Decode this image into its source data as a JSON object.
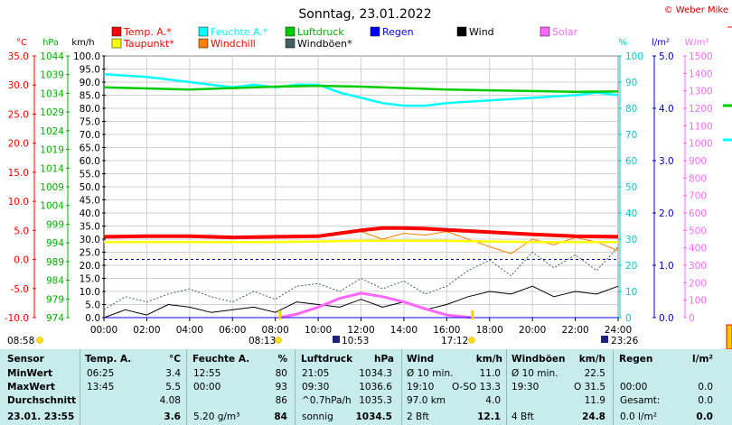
{
  "title": "Sonntag, 23.01.2022",
  "credit": "© Weber Mike",
  "axes": {
    "temp": {
      "unit": "°C",
      "ticks": [
        "35.0",
        "30.0",
        "25.0",
        "20.0",
        "15.0",
        "10.0",
        "5.0",
        "0.0",
        "-5.0",
        "-10.0"
      ],
      "color": "#ff0000"
    },
    "hpa": {
      "unit": "hPa",
      "ticks": [
        "1044",
        "1039",
        "1034",
        "1029",
        "1024",
        "1019",
        "1014",
        "1009",
        "1004",
        "999",
        "994",
        "989",
        "984",
        "979",
        "974"
      ],
      "color": "#00b000"
    },
    "kmh": {
      "unit": "km/h",
      "ticks": [
        "100.0",
        "95.0",
        "90.0",
        "85.0",
        "80.0",
        "75.0",
        "70.0",
        "65.0",
        "60.0",
        "55.0",
        "50.0",
        "45.0",
        "40.0",
        "35.0",
        "30.0",
        "25.0",
        "20.0",
        "15.0",
        "10.0",
        "5.0",
        "0.0"
      ],
      "color": "#000000"
    },
    "pct": {
      "unit": "%",
      "ticks": [
        "100",
        "90",
        "80",
        "70",
        "60",
        "50",
        "40",
        "30",
        "20",
        "10",
        "0"
      ],
      "color": "#00c8c8"
    },
    "lm2": {
      "unit": "l/m²",
      "ticks": [
        "5.0",
        "4.0",
        "3.0",
        "2.0",
        "1.0",
        "0.0"
      ],
      "color": "#0000cc"
    },
    "wm2": {
      "unit": "W/m²",
      "ticks": [
        "1500",
        "1400",
        "1300",
        "1200",
        "1100",
        "1000",
        "900",
        "800",
        "700",
        "600",
        "500",
        "400",
        "300",
        "200",
        "100",
        "0"
      ],
      "color": "#ff66ff"
    }
  },
  "legend": [
    {
      "label": "Temp. A.*",
      "color": "#ff0000"
    },
    {
      "label": "Feuchte A.*",
      "color": "#00ffff"
    },
    {
      "label": "Luftdruck",
      "color": "#00cc00"
    },
    {
      "label": "Regen",
      "color": "#0000ff"
    },
    {
      "label": "Wind",
      "color": "#000000"
    },
    {
      "label": "Solar",
      "color": "#ff66ff"
    },
    {
      "label": "Taupunkt*",
      "color": "#ffff00"
    },
    {
      "label": "Windchill",
      "color": "#ff8000"
    },
    {
      "label": "Windböen*",
      "color": "#406060"
    }
  ],
  "time_ticks": [
    "00:00",
    "02:00",
    "04:00",
    "06:00",
    "08:00",
    "10:00",
    "12:00",
    "14:00",
    "16:00",
    "18:00",
    "20:00",
    "22:00",
    "24:00"
  ],
  "events": [
    {
      "label": "08:58",
      "icon": "sunrise-icon"
    },
    {
      "label": "08:13",
      "icon": "sun-icon"
    },
    {
      "label": "10:53",
      "icon": "moonrise-icon"
    },
    {
      "label": "17:12",
      "icon": "sunset-icon"
    },
    {
      "label": "23:26",
      "icon": "moonset-icon"
    }
  ],
  "chart_data": {
    "type": "line",
    "x_unit": "hour",
    "series": [
      {
        "name": "Temp. A.*",
        "axis": "temp",
        "color": "#ff0000",
        "x": [
          0,
          2,
          4,
          6,
          8,
          10,
          12,
          13,
          14,
          15,
          16,
          18,
          20,
          22,
          24
        ],
        "y": [
          3.9,
          4.0,
          4.0,
          3.8,
          3.9,
          4.0,
          5.0,
          5.4,
          5.4,
          5.3,
          5.1,
          4.7,
          4.3,
          4.0,
          3.9
        ]
      },
      {
        "name": "Taupunkt*",
        "axis": "temp",
        "color": "#ffff00",
        "x": [
          0,
          2,
          4,
          6,
          8,
          10,
          12,
          14,
          16,
          18,
          20,
          22,
          24
        ],
        "y": [
          3.0,
          3.0,
          3.0,
          3.0,
          3.0,
          3.1,
          3.2,
          3.2,
          3.2,
          3.1,
          3.0,
          3.0,
          3.0
        ]
      },
      {
        "name": "Feuchte A.*",
        "axis": "pct",
        "color": "#00ffff",
        "x": [
          0,
          2,
          4,
          6,
          7,
          8,
          9,
          10,
          11,
          12,
          13,
          14,
          15,
          16,
          18,
          20,
          22,
          23,
          24
        ],
        "y": [
          93,
          92,
          90,
          88,
          89,
          88,
          89,
          89,
          86,
          84,
          82,
          81,
          81,
          82,
          83,
          84,
          85,
          86,
          85
        ]
      },
      {
        "name": "Luftdruck",
        "axis": "hpa",
        "color": "#00cc00",
        "x": [
          0,
          2,
          4,
          6,
          8,
          10,
          12,
          14,
          16,
          18,
          20,
          22,
          24
        ],
        "y": [
          1035.6,
          1035.3,
          1035.0,
          1035.4,
          1035.8,
          1036.0,
          1035.8,
          1035.4,
          1035.0,
          1034.8,
          1034.6,
          1034.4,
          1034.5
        ]
      },
      {
        "name": "Windchill",
        "axis": "temp",
        "color": "#ff8000",
        "x": [
          0,
          2,
          4,
          6,
          8,
          10,
          12,
          13,
          14,
          15,
          16,
          17,
          18,
          19,
          20,
          21,
          22,
          23,
          24
        ],
        "y": [
          3.9,
          4.0,
          4.0,
          3.8,
          3.9,
          4.0,
          4.8,
          3.5,
          4.5,
          4.2,
          4.8,
          3.5,
          2.2,
          1.0,
          3.5,
          2.5,
          3.8,
          3.0,
          1.5
        ]
      },
      {
        "name": "Windböen*",
        "axis": "kmh",
        "color": "#406060",
        "x": [
          0,
          1,
          2,
          3,
          4,
          5,
          6,
          7,
          8,
          9,
          10,
          11,
          12,
          13,
          14,
          15,
          16,
          17,
          18,
          19,
          20,
          21,
          22,
          23,
          24
        ],
        "y": [
          3,
          8,
          6,
          9,
          11,
          8,
          6,
          10,
          7,
          12,
          13,
          10,
          15,
          11,
          14,
          9,
          12,
          18,
          22,
          16,
          25,
          19,
          24,
          18,
          27
        ]
      },
      {
        "name": "Wind",
        "axis": "kmh",
        "color": "#000000",
        "x": [
          0,
          1,
          2,
          3,
          4,
          5,
          6,
          7,
          8,
          9,
          10,
          11,
          12,
          13,
          14,
          15,
          16,
          17,
          18,
          19,
          20,
          21,
          22,
          23,
          24
        ],
        "y": [
          0,
          3,
          1,
          5,
          4,
          2,
          3,
          4,
          2,
          6,
          5,
          4,
          7,
          4,
          6,
          3,
          5,
          8,
          10,
          9,
          12,
          8,
          10,
          9,
          12
        ]
      },
      {
        "name": "Solar",
        "axis": "wm2",
        "color": "#ff66ff",
        "x": [
          8.2,
          9,
          10,
          11,
          12,
          13,
          14,
          15,
          16,
          17.2
        ],
        "y": [
          0,
          20,
          60,
          110,
          140,
          120,
          90,
          50,
          15,
          0
        ]
      },
      {
        "name": "Regen",
        "axis": "lm2",
        "color": "#0000ff",
        "x": [
          0,
          24
        ],
        "y": [
          0,
          0
        ]
      }
    ]
  },
  "stats": {
    "headers": [
      "Sensor",
      "Temp. A.",
      "°C",
      "Feuchte A.",
      "%",
      "Luftdruck",
      "hPa",
      "Wind",
      "km/h",
      "Windböen",
      "km/h",
      "Regen",
      "l/m²"
    ],
    "rows": [
      {
        "label": "MinWert",
        "cells": [
          "06:25",
          "3.4",
          "12:55",
          "80",
          "21:05",
          "1034.3",
          "Ø 10 min.",
          "11.0",
          "Ø 10 min.",
          "22.5",
          "",
          ""
        ]
      },
      {
        "label": "MaxWert",
        "cells": [
          "13:45",
          "5.5",
          "00:00",
          "93",
          "09:30",
          "1036.6",
          "19:10",
          "O-SO 13.3",
          "19:30",
          "O 31.5",
          "00:00",
          "0.0"
        ]
      },
      {
        "label": "Durchschnitt",
        "cells": [
          "",
          "4.08",
          "",
          "86",
          "^0.7hPa/h",
          "1035.3",
          "97.0 km",
          "4.0",
          "",
          "11.9",
          "Gesamt:",
          "0.0"
        ]
      },
      {
        "label": "23.01. 23:55",
        "cells": [
          "",
          "3.6",
          "5.20 g/m³",
          "84",
          "sonnig",
          "1034.5",
          "2 Bft",
          "12.1",
          "4 Bft",
          "24.8",
          "0.0 l/m²",
          "0.0"
        ]
      }
    ]
  }
}
